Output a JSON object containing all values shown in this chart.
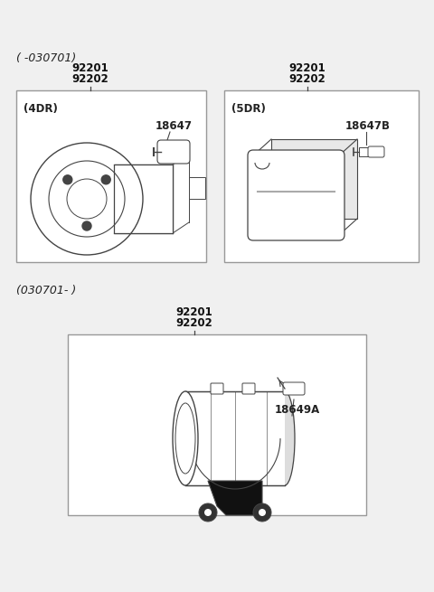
{
  "background_color": "#f0f0f0",
  "top_section_label": "( -030701)",
  "bottom_section_label": "(030701- )",
  "box1_label": "(4DR)",
  "box1_part1": "92201",
  "box1_part2": "92202",
  "box1_sub": "18647",
  "box2_label": "(5DR)",
  "box2_part1": "92201",
  "box2_part2": "92202",
  "box2_sub": "18647B",
  "box3_part1": "92201",
  "box3_part2": "92202",
  "box3_sub": "18649A",
  "line_color": "#444444",
  "box_edge_color": "#999999",
  "text_color": "#222222",
  "part_num_color": "#111111"
}
